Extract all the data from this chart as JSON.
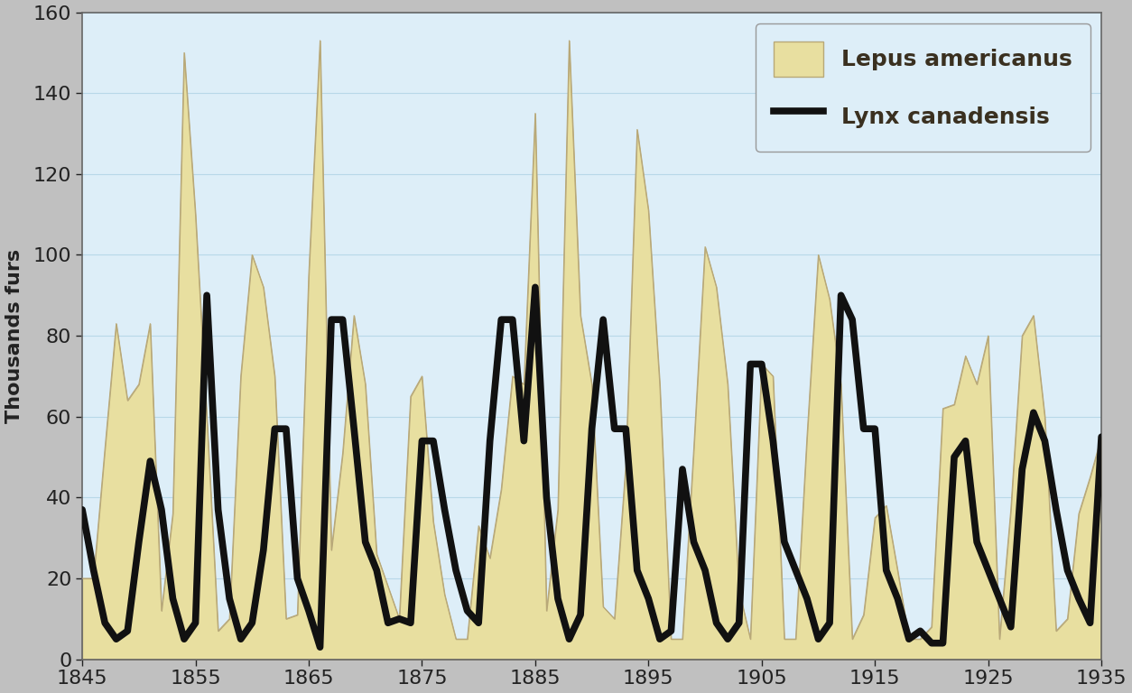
{
  "years": [
    1845,
    1846,
    1847,
    1848,
    1849,
    1850,
    1851,
    1852,
    1853,
    1854,
    1855,
    1856,
    1857,
    1858,
    1859,
    1860,
    1861,
    1862,
    1863,
    1864,
    1865,
    1866,
    1867,
    1868,
    1869,
    1870,
    1871,
    1872,
    1873,
    1874,
    1875,
    1876,
    1877,
    1878,
    1879,
    1880,
    1881,
    1882,
    1883,
    1884,
    1885,
    1886,
    1887,
    1888,
    1889,
    1890,
    1891,
    1892,
    1893,
    1894,
    1895,
    1896,
    1897,
    1898,
    1899,
    1900,
    1901,
    1902,
    1903,
    1904,
    1905,
    1906,
    1907,
    1908,
    1909,
    1910,
    1911,
    1912,
    1913,
    1914,
    1915,
    1916,
    1917,
    1918,
    1919,
    1920,
    1921,
    1922,
    1923,
    1924,
    1925,
    1926,
    1927,
    1928,
    1929,
    1930,
    1931,
    1932,
    1933,
    1934,
    1935
  ],
  "hare": [
    20,
    20,
    52,
    83,
    64,
    68,
    83,
    12,
    36,
    150,
    110,
    60,
    7,
    10,
    70,
    100,
    92,
    70,
    10,
    11,
    95,
    153,
    27,
    51,
    85,
    68,
    26,
    18,
    10,
    65,
    70,
    34,
    16,
    5,
    5,
    33,
    25,
    42,
    70,
    68,
    135,
    12,
    37,
    153,
    85,
    68,
    13,
    10,
    48,
    131,
    111,
    68,
    5,
    5,
    52,
    102,
    92,
    68,
    17,
    5,
    73,
    70,
    5,
    5,
    55,
    100,
    89,
    68,
    5,
    11,
    35,
    38,
    22,
    5,
    5,
    8,
    62,
    63,
    75,
    68,
    80,
    5,
    37,
    80,
    85,
    60,
    7,
    10,
    36,
    45,
    55
  ],
  "lynx": [
    37,
    22,
    9,
    5,
    7,
    29,
    49,
    37,
    15,
    5,
    9,
    90,
    37,
    15,
    5,
    9,
    27,
    57,
    57,
    20,
    12,
    3,
    84,
    84,
    57,
    29,
    22,
    9,
    10,
    9,
    54,
    54,
    37,
    22,
    12,
    9,
    54,
    84,
    84,
    54,
    92,
    40,
    15,
    5,
    11,
    57,
    84,
    57,
    57,
    22,
    15,
    5,
    7,
    47,
    29,
    22,
    9,
    5,
    9,
    73,
    73,
    54,
    29,
    22,
    15,
    5,
    9,
    90,
    84,
    57,
    57,
    22,
    15,
    5,
    7,
    4,
    4,
    50,
    54,
    29,
    22,
    15,
    8,
    47,
    61,
    54,
    37,
    22,
    15,
    9,
    55
  ],
  "hare_color": "#e8dfa0",
  "hare_edge_color": "#b8a878",
  "lynx_color": "#111111",
  "plot_bg_color": "#ddeef8",
  "outer_bg_color": "#c0c0c0",
  "ylabel": "Thousands furs",
  "xlim": [
    1845,
    1935
  ],
  "ylim": [
    0,
    160
  ],
  "yticks": [
    0,
    20,
    40,
    60,
    80,
    100,
    120,
    140,
    160
  ],
  "xticks": [
    1845,
    1855,
    1865,
    1875,
    1885,
    1895,
    1905,
    1915,
    1925,
    1935
  ],
  "lynx_linewidth": 5.5,
  "legend_hare_label": "Lepus americanus",
  "legend_lynx_label": "Lynx canadensis",
  "grid_color": "#b8d8e8",
  "ylabel_fontsize": 16,
  "tick_fontsize": 16,
  "legend_fontsize": 18,
  "legend_text_color": "#3a3020",
  "tick_color": "#222222"
}
